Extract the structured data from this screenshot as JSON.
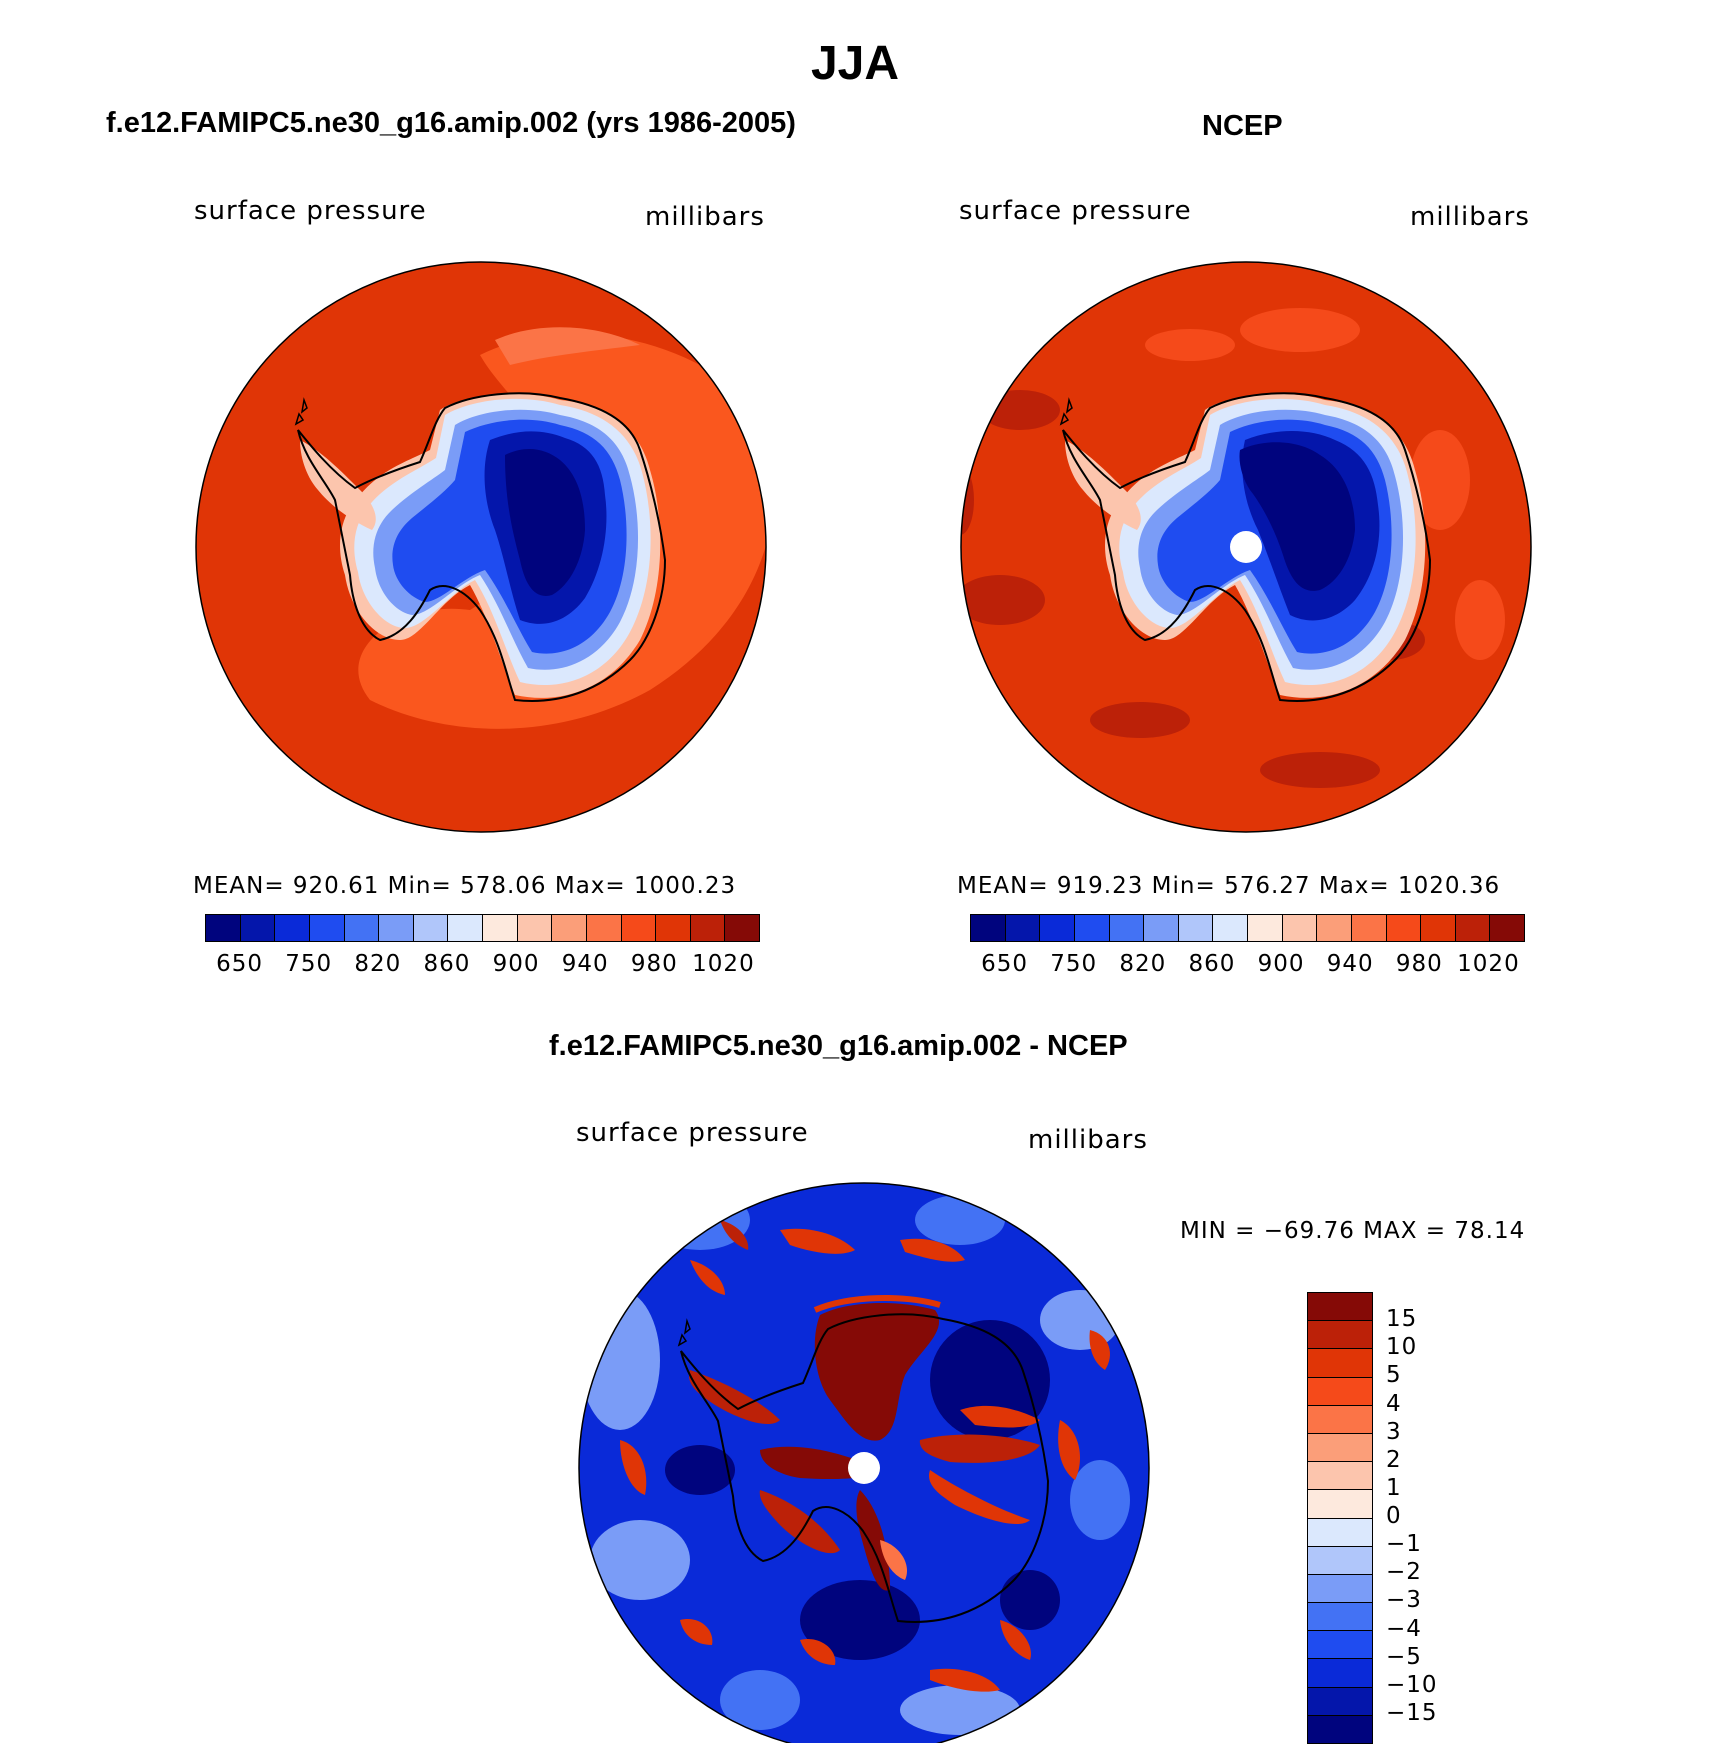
{
  "title": "JJA",
  "colors": {
    "ocean_model": "#e03506",
    "ocean_obs": "#e03506",
    "ocean_light": "#fb5a20",
    "ocean_dark": "#bc2108",
    "land_deep": "#00047e",
    "land_mid": "#0a26c8",
    "land_edge": "#4f7cf5",
    "diff_base": "#0a2ad8"
  },
  "panels": [
    {
      "title": "f.e12.FAMIPC5.ne30_g16.amip.002 (yrs 1986-2005)",
      "left_label": "surface pressure",
      "right_label": "millibars",
      "stats": "MEAN=  920.61    Min=  578.06    Max=  1000.23",
      "show_pole_hole": false
    },
    {
      "title": "NCEP",
      "left_label": "surface pressure",
      "right_label": "millibars",
      "stats": "MEAN=  919.23    Min=  576.27    Max=  1020.36",
      "show_pole_hole": true
    }
  ],
  "colorbar_main": {
    "colors": [
      "#00047e",
      "#0416ab",
      "#0a2ad8",
      "#1f4cf0",
      "#4372f4",
      "#7a9cf7",
      "#b0c6fa",
      "#dbe8fd",
      "#fde9dd",
      "#fcc5ad",
      "#fb9e79",
      "#fb7447",
      "#f54a1a",
      "#e03506",
      "#bc2108",
      "#850a06"
    ],
    "labels": [
      "650",
      "750",
      "820",
      "860",
      "900",
      "940",
      "980",
      "1020"
    ]
  },
  "diff_panel": {
    "title": "f.e12.FAMIPC5.ne30_g16.amip.002 - NCEP",
    "left_label": "surface pressure",
    "right_label": "millibars",
    "stats": "MIN = −69.76  MAX =   78.14"
  },
  "colorbar_diff": {
    "colors": [
      "#850a06",
      "#bc2108",
      "#e03506",
      "#f54a1a",
      "#fb7447",
      "#fb9e79",
      "#fcc5ad",
      "#fde9dd",
      "#dbe8fd",
      "#b0c6fa",
      "#7a9cf7",
      "#4372f4",
      "#1f4cf0",
      "#0a2ad8",
      "#0416ab",
      "#00047e"
    ],
    "labels": [
      "15",
      "10",
      "5",
      "4",
      "3",
      "2",
      "1",
      "0",
      "−1",
      "−2",
      "−3",
      "−4",
      "−5",
      "−10",
      "−15"
    ]
  }
}
